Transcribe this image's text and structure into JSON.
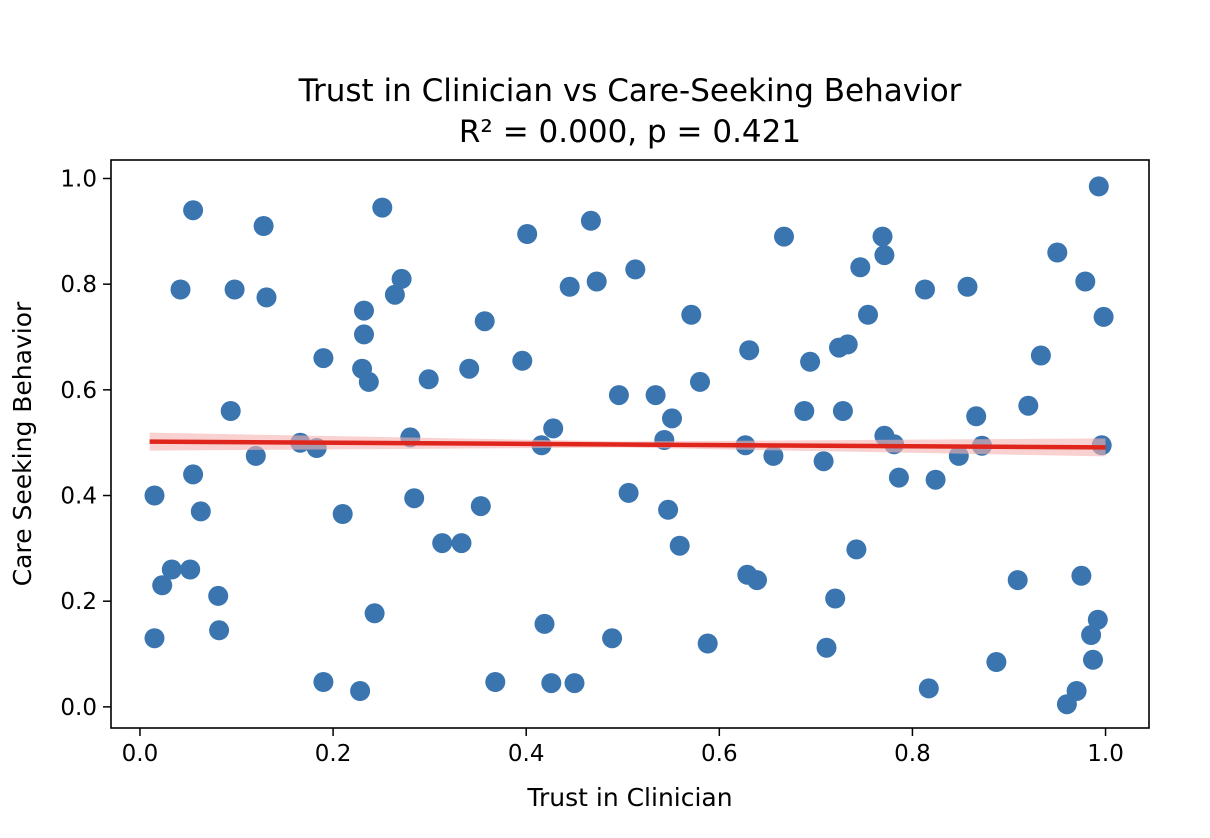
{
  "chart_data": {
    "type": "scatter",
    "title": "Trust in Clinician vs Care-Seeking Behavior",
    "subtitle": "R² = 0.000, p = 0.421",
    "xlabel": "Trust in Clinician",
    "ylabel": "Care Seeking Behavior",
    "xlim": [
      -0.03,
      1.045
    ],
    "ylim": [
      -0.04,
      1.035
    ],
    "xticks": [
      0.0,
      0.2,
      0.4,
      0.6,
      0.8,
      1.0
    ],
    "yticks": [
      0.0,
      0.2,
      0.4,
      0.6,
      0.8,
      1.0
    ],
    "grid": false,
    "point_color": "#3a75b0",
    "line_color": "#e0261c",
    "band_color": "#f3b3b0",
    "regression": {
      "x": [
        0.01,
        1.0
      ],
      "y": [
        0.502,
        0.491
      ]
    },
    "points": [
      {
        "x": 0.015,
        "y": 0.4
      },
      {
        "x": 0.015,
        "y": 0.13
      },
      {
        "x": 0.023,
        "y": 0.23
      },
      {
        "x": 0.033,
        "y": 0.26
      },
      {
        "x": 0.042,
        "y": 0.79
      },
      {
        "x": 0.052,
        "y": 0.26
      },
      {
        "x": 0.055,
        "y": 0.44
      },
      {
        "x": 0.055,
        "y": 0.94
      },
      {
        "x": 0.063,
        "y": 0.37
      },
      {
        "x": 0.081,
        "y": 0.21
      },
      {
        "x": 0.082,
        "y": 0.145
      },
      {
        "x": 0.094,
        "y": 0.56
      },
      {
        "x": 0.098,
        "y": 0.79
      },
      {
        "x": 0.12,
        "y": 0.475
      },
      {
        "x": 0.128,
        "y": 0.91
      },
      {
        "x": 0.131,
        "y": 0.775
      },
      {
        "x": 0.166,
        "y": 0.5
      },
      {
        "x": 0.183,
        "y": 0.49
      },
      {
        "x": 0.19,
        "y": 0.66
      },
      {
        "x": 0.19,
        "y": 0.047
      },
      {
        "x": 0.21,
        "y": 0.365
      },
      {
        "x": 0.228,
        "y": 0.03
      },
      {
        "x": 0.23,
        "y": 0.64
      },
      {
        "x": 0.232,
        "y": 0.705
      },
      {
        "x": 0.232,
        "y": 0.75
      },
      {
        "x": 0.237,
        "y": 0.615
      },
      {
        "x": 0.243,
        "y": 0.177
      },
      {
        "x": 0.251,
        "y": 0.945
      },
      {
        "x": 0.264,
        "y": 0.78
      },
      {
        "x": 0.271,
        "y": 0.81
      },
      {
        "x": 0.28,
        "y": 0.51
      },
      {
        "x": 0.284,
        "y": 0.395
      },
      {
        "x": 0.299,
        "y": 0.62
      },
      {
        "x": 0.313,
        "y": 0.31
      },
      {
        "x": 0.333,
        "y": 0.31
      },
      {
        "x": 0.341,
        "y": 0.64
      },
      {
        "x": 0.353,
        "y": 0.38
      },
      {
        "x": 0.357,
        "y": 0.73
      },
      {
        "x": 0.368,
        "y": 0.047
      },
      {
        "x": 0.396,
        "y": 0.655
      },
      {
        "x": 0.401,
        "y": 0.895
      },
      {
        "x": 0.416,
        "y": 0.495
      },
      {
        "x": 0.419,
        "y": 0.157
      },
      {
        "x": 0.426,
        "y": 0.045
      },
      {
        "x": 0.428,
        "y": 0.527
      },
      {
        "x": 0.445,
        "y": 0.795
      },
      {
        "x": 0.45,
        "y": 0.045
      },
      {
        "x": 0.467,
        "y": 0.92
      },
      {
        "x": 0.473,
        "y": 0.805
      },
      {
        "x": 0.489,
        "y": 0.13
      },
      {
        "x": 0.496,
        "y": 0.59
      },
      {
        "x": 0.506,
        "y": 0.405
      },
      {
        "x": 0.513,
        "y": 0.828
      },
      {
        "x": 0.534,
        "y": 0.59
      },
      {
        "x": 0.543,
        "y": 0.505
      },
      {
        "x": 0.547,
        "y": 0.373
      },
      {
        "x": 0.551,
        "y": 0.546
      },
      {
        "x": 0.559,
        "y": 0.305
      },
      {
        "x": 0.571,
        "y": 0.742
      },
      {
        "x": 0.58,
        "y": 0.615
      },
      {
        "x": 0.588,
        "y": 0.12
      },
      {
        "x": 0.627,
        "y": 0.495
      },
      {
        "x": 0.629,
        "y": 0.25
      },
      {
        "x": 0.631,
        "y": 0.675
      },
      {
        "x": 0.639,
        "y": 0.24
      },
      {
        "x": 0.656,
        "y": 0.475
      },
      {
        "x": 0.667,
        "y": 0.89
      },
      {
        "x": 0.688,
        "y": 0.56
      },
      {
        "x": 0.694,
        "y": 0.653
      },
      {
        "x": 0.708,
        "y": 0.465
      },
      {
        "x": 0.711,
        "y": 0.112
      },
      {
        "x": 0.72,
        "y": 0.205
      },
      {
        "x": 0.724,
        "y": 0.68
      },
      {
        "x": 0.728,
        "y": 0.56
      },
      {
        "x": 0.733,
        "y": 0.686
      },
      {
        "x": 0.742,
        "y": 0.298
      },
      {
        "x": 0.746,
        "y": 0.832
      },
      {
        "x": 0.754,
        "y": 0.742
      },
      {
        "x": 0.769,
        "y": 0.89
      },
      {
        "x": 0.771,
        "y": 0.855
      },
      {
        "x": 0.771,
        "y": 0.513
      },
      {
        "x": 0.781,
        "y": 0.497
      },
      {
        "x": 0.786,
        "y": 0.434
      },
      {
        "x": 0.813,
        "y": 0.79
      },
      {
        "x": 0.817,
        "y": 0.035
      },
      {
        "x": 0.824,
        "y": 0.43
      },
      {
        "x": 0.848,
        "y": 0.475
      },
      {
        "x": 0.857,
        "y": 0.795
      },
      {
        "x": 0.866,
        "y": 0.55
      },
      {
        "x": 0.872,
        "y": 0.494
      },
      {
        "x": 0.887,
        "y": 0.085
      },
      {
        "x": 0.909,
        "y": 0.24
      },
      {
        "x": 0.92,
        "y": 0.57
      },
      {
        "x": 0.933,
        "y": 0.665
      },
      {
        "x": 0.95,
        "y": 0.86
      },
      {
        "x": 0.96,
        "y": 0.005
      },
      {
        "x": 0.97,
        "y": 0.03
      },
      {
        "x": 0.975,
        "y": 0.248
      },
      {
        "x": 0.979,
        "y": 0.805
      },
      {
        "x": 0.985,
        "y": 0.136
      },
      {
        "x": 0.987,
        "y": 0.089
      },
      {
        "x": 0.992,
        "y": 0.165
      },
      {
        "x": 0.993,
        "y": 0.985
      },
      {
        "x": 0.996,
        "y": 0.495
      },
      {
        "x": 0.998,
        "y": 0.738
      }
    ]
  }
}
